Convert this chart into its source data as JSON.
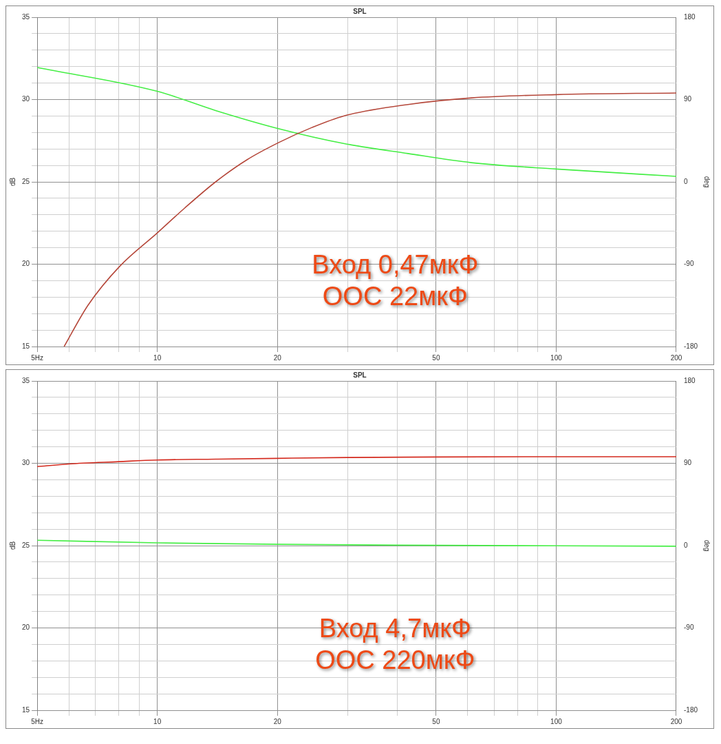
{
  "chart_data": [
    {
      "type": "line",
      "title": "SPL",
      "ylabel": "dB",
      "y2label": "deg",
      "xlim": [
        5,
        200
      ],
      "xticks": [
        {
          "value": 5,
          "label": "5Hz"
        },
        {
          "value": 6,
          "label": null
        },
        {
          "value": 7,
          "label": null
        },
        {
          "value": 8,
          "label": null
        },
        {
          "value": 9,
          "label": null
        },
        10,
        20,
        {
          "value": 30,
          "label": null
        },
        {
          "value": 40,
          "label": null
        },
        50,
        {
          "value": 60,
          "label": null
        },
        {
          "value": 70,
          "label": null
        },
        {
          "value": 80,
          "label": null
        },
        {
          "value": 90,
          "label": null
        },
        100,
        200
      ],
      "ylim": [
        15,
        35
      ],
      "yticks": [
        15,
        {
          "value": 16,
          "label": null
        },
        {
          "value": 17,
          "label": null
        },
        {
          "value": 18,
          "label": null
        },
        {
          "value": 19,
          "label": null
        },
        20,
        {
          "value": 21,
          "label": null
        },
        {
          "value": 22,
          "label": null
        },
        {
          "value": 23,
          "label": null
        },
        {
          "value": 24,
          "label": null
        },
        25,
        {
          "value": 26,
          "label": null
        },
        {
          "value": 27,
          "label": null
        },
        {
          "value": 28,
          "label": null
        },
        {
          "value": 29,
          "label": null
        },
        30,
        {
          "value": 31,
          "label": null
        },
        {
          "value": 32,
          "label": null
        },
        {
          "value": 33,
          "label": null
        },
        {
          "value": 34,
          "label": null
        },
        35
      ],
      "y2lim": [
        -180,
        180
      ],
      "y2ticks": [
        -180,
        -90,
        0,
        90,
        180
      ],
      "grid": true,
      "legend": false,
      "marker": "none",
      "series": [
        {
          "color": "#b5473a",
          "x": [
            5.84,
            6.7,
            8.07,
            10,
            11.7,
            14,
            16.8,
            20.2,
            24.4,
            29.3,
            42.5,
            61.3,
            100,
            200
          ],
          "values": [
            15,
            17.5,
            19.9,
            21.9,
            23.4,
            25,
            26.35,
            27.4,
            28.3,
            29,
            29.7,
            30.1,
            30.3,
            30.4
          ]
        },
        {
          "color": "#44ee44",
          "axis": "y2",
          "x": [
            5,
            10,
            14,
            20.2,
            29.3,
            42.5,
            61.3,
            100,
            200
          ],
          "values": [
            125,
            99,
            78,
            58,
            42,
            31,
            21,
            14,
            6
          ]
        }
      ],
      "log": "x",
      "annotations": [
        "Вход 0,47мкФ",
        "ООС 22мкФ"
      ]
    },
    {
      "type": "line",
      "title": "SPL",
      "ylabel": "dB",
      "y2label": "deg",
      "xlim": [
        5,
        200
      ],
      "xticks": [
        {
          "value": 5,
          "label": "5Hz"
        },
        {
          "value": 6,
          "label": null
        },
        {
          "value": 7,
          "label": null
        },
        {
          "value": 8,
          "label": null
        },
        {
          "value": 9,
          "label": null
        },
        10,
        20,
        {
          "value": 30,
          "label": null
        },
        {
          "value": 40,
          "label": null
        },
        50,
        {
          "value": 60,
          "label": null
        },
        {
          "value": 70,
          "label": null
        },
        {
          "value": 80,
          "label": null
        },
        {
          "value": 90,
          "label": null
        },
        100,
        200
      ],
      "ylim": [
        15,
        35
      ],
      "yticks": [
        15,
        {
          "value": 16,
          "label": null
        },
        {
          "value": 17,
          "label": null
        },
        {
          "value": 18,
          "label": null
        },
        {
          "value": 19,
          "label": null
        },
        20,
        {
          "value": 21,
          "label": null
        },
        {
          "value": 22,
          "label": null
        },
        {
          "value": 23,
          "label": null
        },
        {
          "value": 24,
          "label": null
        },
        25,
        {
          "value": 26,
          "label": null
        },
        {
          "value": 27,
          "label": null
        },
        {
          "value": 28,
          "label": null
        },
        {
          "value": 29,
          "label": null
        },
        30,
        {
          "value": 31,
          "label": null
        },
        {
          "value": 32,
          "label": null
        },
        {
          "value": 33,
          "label": null
        },
        {
          "value": 34,
          "label": null
        },
        35
      ],
      "y2lim": [
        -180,
        180
      ],
      "y2ticks": [
        -180,
        -90,
        0,
        90,
        180
      ],
      "grid": true,
      "legend": false,
      "marker": "none",
      "series": [
        {
          "color": "#d42a1e",
          "x": [
            5,
            6,
            8,
            10,
            14,
            20,
            30,
            50,
            100,
            200
          ],
          "values": [
            29.8,
            29.96,
            30.1,
            30.2,
            30.25,
            30.3,
            30.35,
            30.38,
            30.4,
            30.4
          ]
        },
        {
          "color": "#44ee44",
          "axis": "y2",
          "x": [
            5,
            10,
            20,
            40,
            100,
            200
          ],
          "values": [
            5.8,
            3,
            1.4,
            0.5,
            -0.2,
            -0.7
          ]
        }
      ],
      "log": "x",
      "annotations": [
        "Вход 4,7мкФ",
        "ООС 220мкФ"
      ]
    }
  ]
}
